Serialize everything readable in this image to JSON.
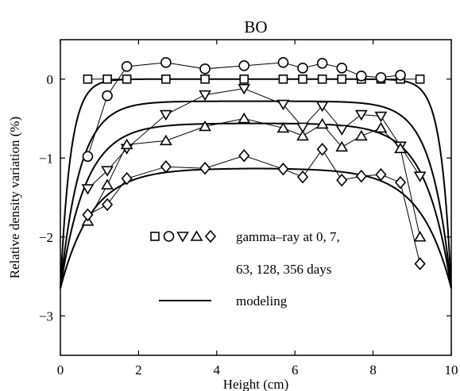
{
  "chart_data": {
    "type": "line",
    "title": "BO",
    "xlabel": "Height (cm)",
    "ylabel": "Relative density variation (%)",
    "xlim": [
      0,
      10
    ],
    "ylim": [
      -3.5,
      0.5
    ],
    "xticks": [
      "0",
      "2",
      "4",
      "6",
      "8",
      "10"
    ],
    "yticks": [
      "0",
      "−1",
      "−2",
      "−3"
    ],
    "legend_position": "lower-center",
    "legend_markers": [
      "square",
      "circle",
      "triangle-down",
      "triangle-up",
      "diamond"
    ],
    "legend_label_lines": [
      "gamma–ray at 0, 7,",
      "63, 128, 356 days"
    ],
    "model_label": "modeling",
    "series": [
      {
        "marker": "square",
        "x": [
          0.7,
          1.2,
          1.7,
          2.7,
          3.7,
          4.7,
          5.7,
          6.2,
          6.7,
          7.2,
          7.7,
          8.2,
          8.7,
          9.2
        ],
        "y": [
          0,
          0,
          0,
          0,
          0,
          0,
          0,
          0,
          0,
          0,
          0,
          0,
          0,
          0
        ]
      },
      {
        "marker": "circle",
        "x": [
          0.7,
          1.2,
          1.7,
          2.7,
          3.7,
          4.7,
          5.7,
          6.2,
          6.7,
          7.2,
          7.7,
          8.2,
          8.7
        ],
        "y": [
          -0.98,
          -0.21,
          0.16,
          0.21,
          0.13,
          0.17,
          0.21,
          0.14,
          0.2,
          0.14,
          0.04,
          0.02,
          0.05
        ]
      },
      {
        "marker": "triangle-down",
        "x": [
          0.7,
          1.2,
          1.7,
          2.7,
          3.7,
          4.7,
          5.7,
          6.2,
          6.7,
          7.2,
          7.7,
          8.2,
          8.7,
          9.2
        ],
        "y": [
          -1.39,
          -1.16,
          -0.88,
          -0.45,
          -0.2,
          -0.12,
          -0.32,
          -0.61,
          -0.34,
          -0.64,
          -0.45,
          -0.47,
          -0.85,
          -1.23
        ]
      },
      {
        "marker": "triangle-up",
        "x": [
          0.7,
          1.2,
          1.7,
          2.7,
          3.7,
          4.7,
          5.7,
          6.2,
          6.7,
          7.2,
          7.7,
          8.2,
          8.7,
          9.2
        ],
        "y": [
          -1.8,
          -1.34,
          -0.83,
          -0.78,
          -0.6,
          -0.5,
          -0.62,
          -0.72,
          -0.57,
          -0.86,
          -0.72,
          -0.62,
          -0.88,
          -2.0
        ]
      },
      {
        "marker": "diamond",
        "x": [
          0.7,
          1.2,
          1.7,
          2.7,
          3.7,
          4.7,
          5.7,
          6.2,
          6.7,
          7.2,
          7.7,
          8.2,
          8.7,
          9.2
        ],
        "y": [
          -1.72,
          -1.59,
          -1.26,
          -1.11,
          -1.13,
          -0.97,
          -1.14,
          -1.24,
          -0.89,
          -1.28,
          -1.23,
          -1.21,
          -1.31,
          -2.34
        ]
      }
    ],
    "model_curves": [
      {
        "plateau": 0.0,
        "edge_width": 0.26
      },
      {
        "plateau": -0.28,
        "edge_width": 0.5
      },
      {
        "plateau": -0.56,
        "edge_width": 0.65
      },
      {
        "plateau": -1.13,
        "edge_width": 0.8
      }
    ],
    "model_edge_value": -2.65
  }
}
